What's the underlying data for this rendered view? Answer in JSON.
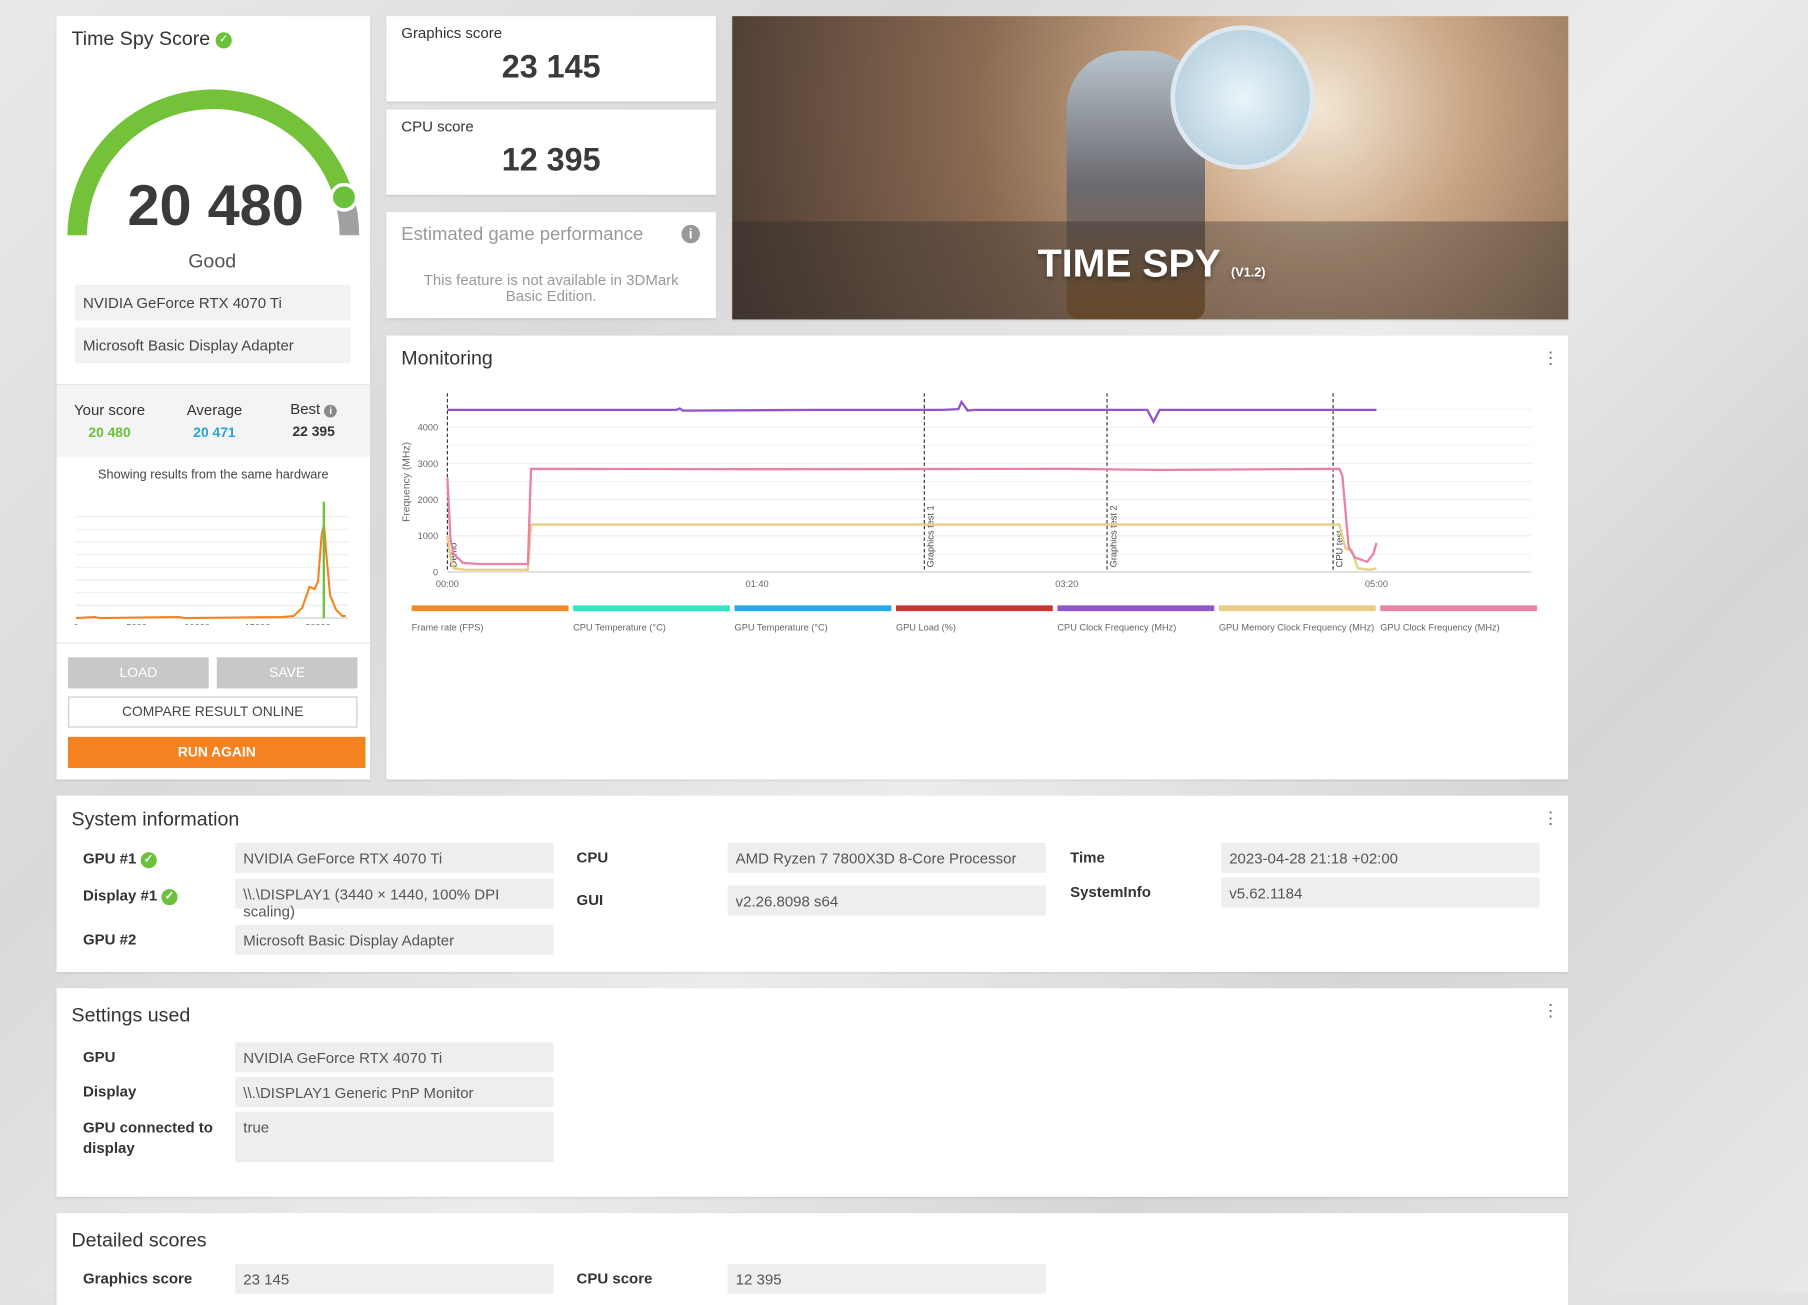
{
  "score_card": {
    "title": "Time Spy Score",
    "score": "20 480",
    "rating": "Good",
    "gauge_fraction": 0.91,
    "hardware": [
      "NVIDIA GeForce RTX 4070 Ti",
      "Microsoft Basic Display Adapter"
    ],
    "your_score_label": "Your score",
    "your_score": "20 480",
    "average_label": "Average",
    "average": "20 471",
    "best_label": "Best",
    "best": "22 395",
    "same_hw_note": "Showing results from the same hardware",
    "load": "LOAD",
    "save": "SAVE",
    "compare": "COMPARE RESULT ONLINE",
    "run_again": "RUN AGAIN"
  },
  "graphics": {
    "label": "Graphics score",
    "value": "23 145"
  },
  "cpu": {
    "label": "CPU score",
    "value": "12 395"
  },
  "estimated": {
    "label": "Estimated game performance",
    "text": "This feature is not available in 3DMark Basic Edition."
  },
  "hero": {
    "title": "TIME SPY",
    "version": "(V1.2)"
  },
  "monitoring": {
    "title": "Monitoring"
  },
  "colors": {
    "accent": "#f58220",
    "green": "#6cc13c",
    "blue": "#2aa1d8"
  },
  "chart_data": [
    {
      "type": "line",
      "ylabel": "Frequency (MHz)",
      "xlim": [
        0,
        350
      ],
      "ylim": [
        0,
        5100
      ],
      "xticks": [
        "00:00",
        "01:40",
        "03:20",
        "05:00"
      ],
      "xtick_values": [
        0,
        100,
        200,
        300
      ],
      "yticks": [
        0,
        1000,
        2000,
        3000,
        4000
      ],
      "markers": [
        {
          "label": "Demo",
          "x": 0
        },
        {
          "label": "Graphics test 1",
          "x": 154
        },
        {
          "label": "Graphics test 2",
          "x": 213
        },
        {
          "label": "CPU test",
          "x": 286
        }
      ],
      "legend": [
        "Frame rate (FPS)",
        "CPU Temperature (°C)",
        "GPU Temperature (°C)",
        "GPU Load (%)",
        "CPU Clock Frequency (MHz)",
        "GPU Memory Clock Frequency (MHz)",
        "GPU Clock Frequency (MHz)"
      ],
      "legend_colors": [
        "#f08a24",
        "#2ee8c0",
        "#22aaee",
        "#cc3333",
        "#9055c8",
        "#e8cc88",
        "#e882a8"
      ],
      "series": [
        {
          "name": "CPU Clock Frequency (MHz)",
          "color": "#9055c8",
          "x": [
            0,
            74,
            75,
            76,
            120,
            160,
            165,
            166,
            168,
            170,
            226,
            228,
            230,
            300
          ],
          "y": [
            4480,
            4480,
            4520,
            4460,
            4480,
            4480,
            4500,
            4700,
            4460,
            4480,
            4480,
            4150,
            4480,
            4480
          ]
        },
        {
          "name": "GPU Memory Clock Frequency (MHz)",
          "color": "#e8cc88",
          "x": [
            0,
            1,
            2,
            6,
            26,
            27,
            288,
            290,
            292,
            294,
            298,
            300
          ],
          "y": [
            1000,
            400,
            100,
            60,
            60,
            1310,
            1310,
            650,
            600,
            100,
            60,
            100
          ]
        },
        {
          "name": "GPU Clock Frequency (MHz)",
          "color": "#e882a8",
          "x": [
            0,
            1,
            2,
            5,
            10,
            26,
            27,
            100,
            200,
            230,
            288,
            289,
            291,
            293,
            297,
            299,
            300
          ],
          "y": [
            2600,
            900,
            500,
            250,
            220,
            220,
            2850,
            2840,
            2850,
            2820,
            2850,
            2650,
            700,
            400,
            280,
            500,
            800
          ]
        }
      ]
    },
    {
      "type": "line",
      "xlim": [
        0,
        22500
      ],
      "xticks": [
        0,
        5000,
        10000,
        15000,
        20000
      ],
      "marker_x": 20480,
      "series": [
        {
          "color": "#f58220",
          "x": [
            0,
            1500,
            2000,
            8500,
            9000,
            17000,
            18000,
            18700,
            19300,
            19700,
            20000,
            20300,
            20500,
            20700,
            21000,
            21500,
            22000,
            22300
          ],
          "y": [
            0,
            1,
            0,
            1,
            0,
            1,
            2,
            10,
            30,
            28,
            35,
            80,
            90,
            60,
            22,
            8,
            2,
            2
          ]
        }
      ]
    }
  ],
  "system_info": {
    "title": "System information",
    "rows": [
      {
        "label": "GPU #1",
        "value": "NVIDIA GeForce RTX 4070 Ti"
      },
      {
        "label": "Display #1",
        "value": "\\\\.\\DISPLAY1 (3440 × 1440, 100% DPI scaling)"
      },
      {
        "label": "GPU #2",
        "value": "Microsoft Basic Display Adapter"
      },
      {
        "label": "CPU",
        "value": "AMD Ryzen 7 7800X3D 8-Core Processor"
      },
      {
        "label": "GUI",
        "value": "v2.26.8098 s64"
      },
      {
        "label": "Time",
        "value": "2023-04-28 21:18 +02:00"
      },
      {
        "label": "SystemInfo",
        "value": "v5.62.1184"
      }
    ]
  },
  "settings": {
    "title": "Settings used",
    "rows": [
      {
        "label": "GPU",
        "value": "NVIDIA GeForce RTX 4070 Ti"
      },
      {
        "label": "Display",
        "value": "\\\\.\\DISPLAY1 Generic PnP Monitor"
      },
      {
        "label": "GPU connected to display",
        "value": "true"
      }
    ]
  },
  "detailed": {
    "title": "Detailed scores",
    "rows": [
      {
        "label": "Graphics score",
        "value": "23 145"
      },
      {
        "label": "CPU score",
        "value": "12 395"
      }
    ]
  }
}
